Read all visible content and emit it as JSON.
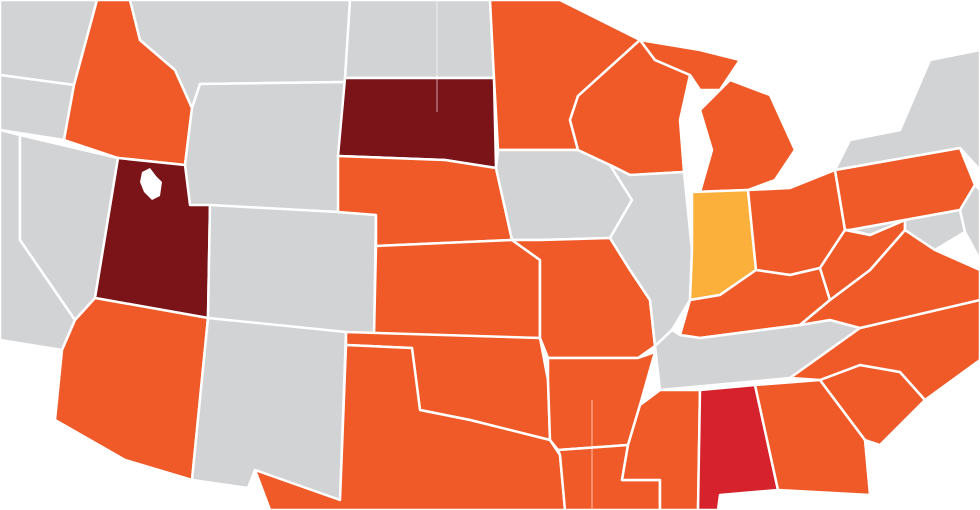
{
  "map": {
    "legend_colors": {
      "dark_red": "#7a1419",
      "red": "#d6222d",
      "orange": "#f05a28",
      "yellow": "#fbb03b",
      "gray": "#d2d3d5"
    },
    "background": "#ffffff",
    "border_color": "#ffffff",
    "states": [
      {
        "id": "washington",
        "category": "gray"
      },
      {
        "id": "oregon",
        "category": "gray"
      },
      {
        "id": "california",
        "category": "gray"
      },
      {
        "id": "nevada",
        "category": "gray"
      },
      {
        "id": "idaho",
        "category": "orange"
      },
      {
        "id": "montana",
        "category": "gray"
      },
      {
        "id": "wyoming",
        "category": "gray"
      },
      {
        "id": "utah",
        "category": "dark_red"
      },
      {
        "id": "colorado",
        "category": "gray"
      },
      {
        "id": "arizona",
        "category": "orange"
      },
      {
        "id": "new-mexico",
        "category": "gray"
      },
      {
        "id": "north-dakota",
        "category": "gray"
      },
      {
        "id": "south-dakota",
        "category": "dark_red"
      },
      {
        "id": "nebraska",
        "category": "orange"
      },
      {
        "id": "kansas",
        "category": "orange"
      },
      {
        "id": "oklahoma",
        "category": "orange"
      },
      {
        "id": "texas",
        "category": "orange"
      },
      {
        "id": "minnesota",
        "category": "orange"
      },
      {
        "id": "iowa",
        "category": "gray"
      },
      {
        "id": "missouri",
        "category": "orange"
      },
      {
        "id": "arkansas",
        "category": "orange"
      },
      {
        "id": "louisiana",
        "category": "orange"
      },
      {
        "id": "wisconsin",
        "category": "orange"
      },
      {
        "id": "illinois",
        "category": "gray"
      },
      {
        "id": "michigan",
        "category": "orange"
      },
      {
        "id": "indiana",
        "category": "yellow"
      },
      {
        "id": "ohio",
        "category": "orange"
      },
      {
        "id": "kentucky",
        "category": "orange"
      },
      {
        "id": "tennessee",
        "category": "gray"
      },
      {
        "id": "mississippi",
        "category": "orange"
      },
      {
        "id": "alabama",
        "category": "red"
      },
      {
        "id": "georgia",
        "category": "orange"
      },
      {
        "id": "south-carolina",
        "category": "orange"
      },
      {
        "id": "north-carolina",
        "category": "orange"
      },
      {
        "id": "virginia",
        "category": "orange"
      },
      {
        "id": "west-virginia",
        "category": "orange"
      },
      {
        "id": "pennsylvania",
        "category": "orange"
      },
      {
        "id": "new-york",
        "category": "gray"
      },
      {
        "id": "maryland",
        "category": "gray"
      },
      {
        "id": "delaware",
        "category": "gray"
      }
    ]
  }
}
